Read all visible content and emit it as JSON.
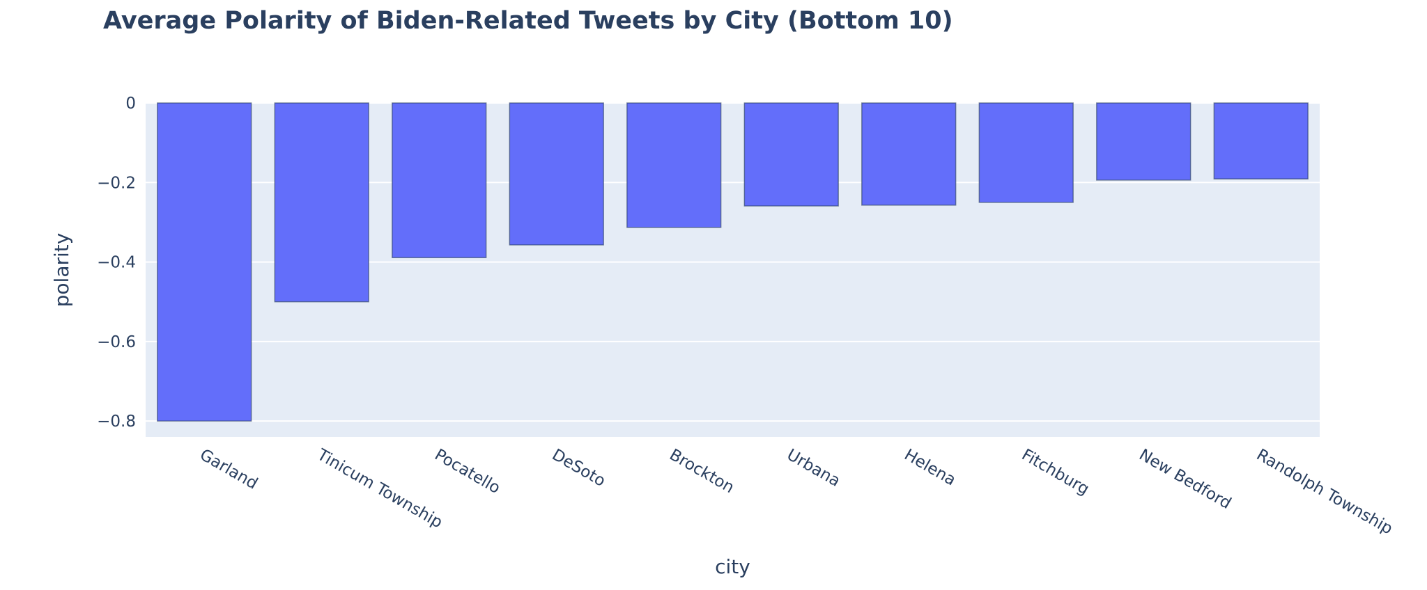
{
  "chart_data": {
    "type": "bar",
    "title": "Average Polarity of Biden-Related Tweets by City (Bottom 10)",
    "xlabel": "city",
    "ylabel": "polarity",
    "categories": [
      "Garland",
      "Tinicum Township",
      "Pocatello",
      "DeSoto",
      "Brockton",
      "Urbana",
      "Helena",
      "Fitchburg",
      "New Bedford",
      "Randolph Township"
    ],
    "values": [
      -0.8,
      -0.5,
      -0.389,
      -0.357,
      -0.313,
      -0.259,
      -0.257,
      -0.25,
      -0.194,
      -0.191
    ],
    "ylim": [
      -0.84,
      0
    ],
    "yticks": [
      0,
      -0.2,
      -0.4,
      -0.6,
      -0.8
    ],
    "ytick_labels": [
      "0",
      "−0.2",
      "−0.4",
      "−0.6",
      "−0.8"
    ],
    "grid": true,
    "legend": "none",
    "colors": {
      "bar": "#636efa",
      "plot_bg": "#e5ecf6",
      "grid": "#ffffff",
      "text": "#2a3f5f",
      "bar_outline": "#2a3f5f"
    }
  }
}
